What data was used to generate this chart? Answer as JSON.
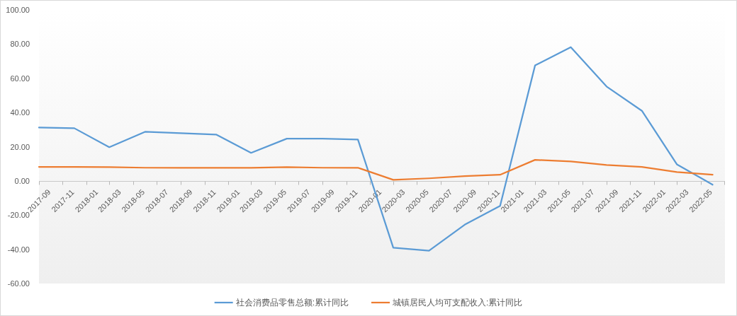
{
  "chart_data": {
    "type": "line",
    "x": [
      "2017-09",
      "2017-12",
      "2018-03",
      "2018-06",
      "2018-09",
      "2018-12",
      "2019-03",
      "2019-06",
      "2019-09",
      "2019-12",
      "2020-03",
      "2020-06",
      "2020-09",
      "2020-12",
      "2021-03",
      "2021-06",
      "2021-09",
      "2021-12",
      "2022-03",
      "2022-06"
    ],
    "series": [
      {
        "name": "社会消费品零售总额:累计同比",
        "color": "#5b9bd5",
        "values": [
          31.2,
          30.8,
          19.7,
          28.7,
          27.9,
          27.1,
          16.4,
          24.7,
          24.7,
          24.2,
          -39.1,
          -40.8,
          -25.6,
          -14.6,
          67.5,
          78.2,
          55.2,
          41.0,
          9.7,
          -2.2
        ]
      },
      {
        "name": "城镇居民人均可支配收入:累计同比",
        "color": "#ed7d31",
        "values": [
          8.2,
          8.2,
          8.1,
          7.7,
          7.7,
          7.7,
          7.7,
          8.1,
          7.7,
          7.7,
          0.6,
          1.5,
          2.8,
          3.6,
          12.3,
          11.4,
          9.3,
          8.2,
          5.2,
          3.6
        ]
      }
    ],
    "xlim": [
      "2017-09",
      "2022-07"
    ],
    "xticks": [
      "2017-09",
      "2017-11",
      "2018-01",
      "2018-03",
      "2018-05",
      "2018-07",
      "2018-09",
      "2018-11",
      "2019-01",
      "2019-03",
      "2019-05",
      "2019-07",
      "2019-09",
      "2019-11",
      "2020-01",
      "2020-03",
      "2020-05",
      "2020-07",
      "2020-09",
      "2020-11",
      "2021-01",
      "2021-03",
      "2021-05",
      "2021-07",
      "2021-09",
      "2021-11",
      "2022-01",
      "2022-03",
      "2022-05",
      {
        "value": "2022-07",
        "label": null
      }
    ],
    "ylim": [
      -60,
      100
    ],
    "yticks": [
      {
        "value": -60,
        "label": "-60.00"
      },
      {
        "value": -40,
        "label": "-40.00"
      },
      {
        "value": -20,
        "label": "-20.00"
      },
      {
        "value": 0,
        "label": "0.00"
      },
      {
        "value": 20,
        "label": "20.00"
      },
      {
        "value": 40,
        "label": "40.00"
      },
      {
        "value": 60,
        "label": "60.00"
      },
      {
        "value": 80,
        "label": "80.00"
      },
      {
        "value": 100,
        "label": "100.00"
      }
    ],
    "legend": "bottom"
  }
}
